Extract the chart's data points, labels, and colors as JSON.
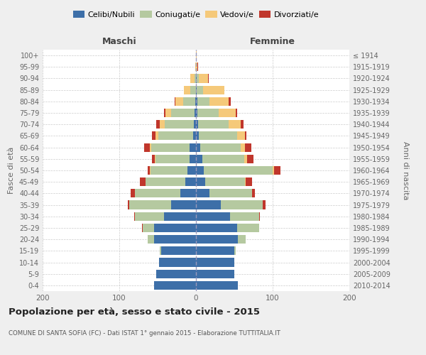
{
  "age_groups": [
    "0-4",
    "5-9",
    "10-14",
    "15-19",
    "20-24",
    "25-29",
    "30-34",
    "35-39",
    "40-44",
    "45-49",
    "50-54",
    "55-59",
    "60-64",
    "65-69",
    "70-74",
    "75-79",
    "80-84",
    "85-89",
    "90-94",
    "95-99",
    "100+"
  ],
  "birth_years": [
    "2010-2014",
    "2005-2009",
    "2000-2004",
    "1995-1999",
    "1990-1994",
    "1985-1989",
    "1980-1984",
    "1975-1979",
    "1970-1974",
    "1965-1969",
    "1960-1964",
    "1955-1959",
    "1950-1954",
    "1945-1949",
    "1940-1944",
    "1935-1939",
    "1930-1934",
    "1925-1929",
    "1920-1924",
    "1915-1919",
    "≤ 1914"
  ],
  "colors": {
    "celibi": "#3d6fa8",
    "coniugati": "#b5c9a0",
    "vedovi": "#f5c97a",
    "divorziati": "#c0362c"
  },
  "males": {
    "celibi": [
      55,
      52,
      48,
      45,
      55,
      55,
      42,
      32,
      20,
      14,
      11,
      8,
      8,
      4,
      3,
      2,
      1,
      0,
      0,
      0,
      0
    ],
    "coniugati": [
      0,
      0,
      0,
      2,
      8,
      14,
      38,
      55,
      60,
      52,
      48,
      45,
      50,
      45,
      38,
      30,
      16,
      7,
      2,
      0,
      0
    ],
    "vedovi": [
      0,
      0,
      0,
      0,
      0,
      0,
      0,
      0,
      0,
      0,
      1,
      1,
      2,
      4,
      6,
      8,
      10,
      9,
      5,
      1,
      0
    ],
    "divorziati": [
      0,
      0,
      0,
      0,
      0,
      1,
      1,
      2,
      5,
      7,
      3,
      3,
      8,
      4,
      5,
      2,
      1,
      0,
      0,
      0,
      0
    ]
  },
  "females": {
    "celibi": [
      55,
      50,
      50,
      50,
      55,
      54,
      44,
      32,
      18,
      12,
      10,
      8,
      6,
      4,
      3,
      2,
      2,
      1,
      1,
      0,
      0
    ],
    "coniugati": [
      0,
      0,
      0,
      2,
      10,
      28,
      38,
      55,
      55,
      52,
      90,
      55,
      52,
      50,
      40,
      28,
      16,
      8,
      3,
      0,
      0
    ],
    "vedovi": [
      0,
      0,
      0,
      0,
      0,
      0,
      0,
      0,
      0,
      1,
      2,
      4,
      6,
      10,
      15,
      22,
      25,
      28,
      12,
      2,
      1
    ],
    "divorziati": [
      0,
      0,
      0,
      0,
      0,
      0,
      1,
      4,
      4,
      8,
      8,
      8,
      8,
      2,
      4,
      2,
      2,
      0,
      1,
      1,
      0
    ]
  },
  "xlim": 200,
  "title": "Popolazione per età, sesso e stato civile - 2015",
  "subtitle": "COMUNE DI SANTA SOFIA (FC) - Dati ISTAT 1° gennaio 2015 - Elaborazione TUTTITALIA.IT",
  "ylabel_left": "Fasce di età",
  "ylabel_right": "Anni di nascita",
  "xlabel_left": "Maschi",
  "xlabel_right": "Femmine",
  "background_color": "#efefef",
  "plot_bg": "#ffffff"
}
